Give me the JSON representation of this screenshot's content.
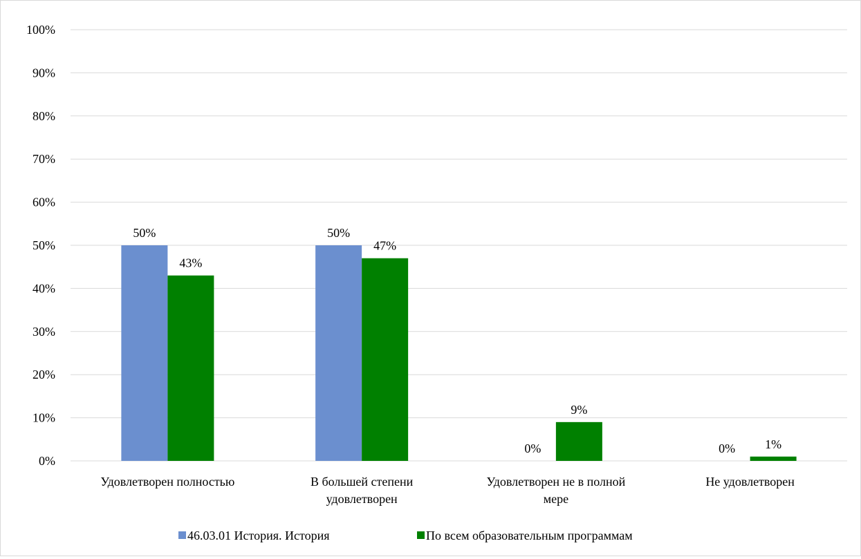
{
  "chart_data": {
    "type": "bar",
    "title": "",
    "xlabel": "",
    "ylabel": "",
    "ylim": [
      0,
      100
    ],
    "y_ticks": [
      0,
      10,
      20,
      30,
      40,
      50,
      60,
      70,
      80,
      90,
      100
    ],
    "y_tick_suffix": "%",
    "grid": true,
    "legend_position": "bottom",
    "categories": [
      [
        "Удовлетворен полностью"
      ],
      [
        "В большей степени",
        "удовлетворен"
      ],
      [
        "Удовлетворен не в полной",
        "мере"
      ],
      [
        "Не удовлетворен"
      ]
    ],
    "series": [
      {
        "name": "46.03.01 История. История",
        "color": "#6b8fcf",
        "values": [
          50,
          50,
          0,
          0
        ]
      },
      {
        "name": "По всем образовательным программам",
        "color": "#008000",
        "values": [
          43,
          47,
          9,
          1
        ]
      }
    ],
    "data_labels": true,
    "data_label_suffix": "%"
  }
}
